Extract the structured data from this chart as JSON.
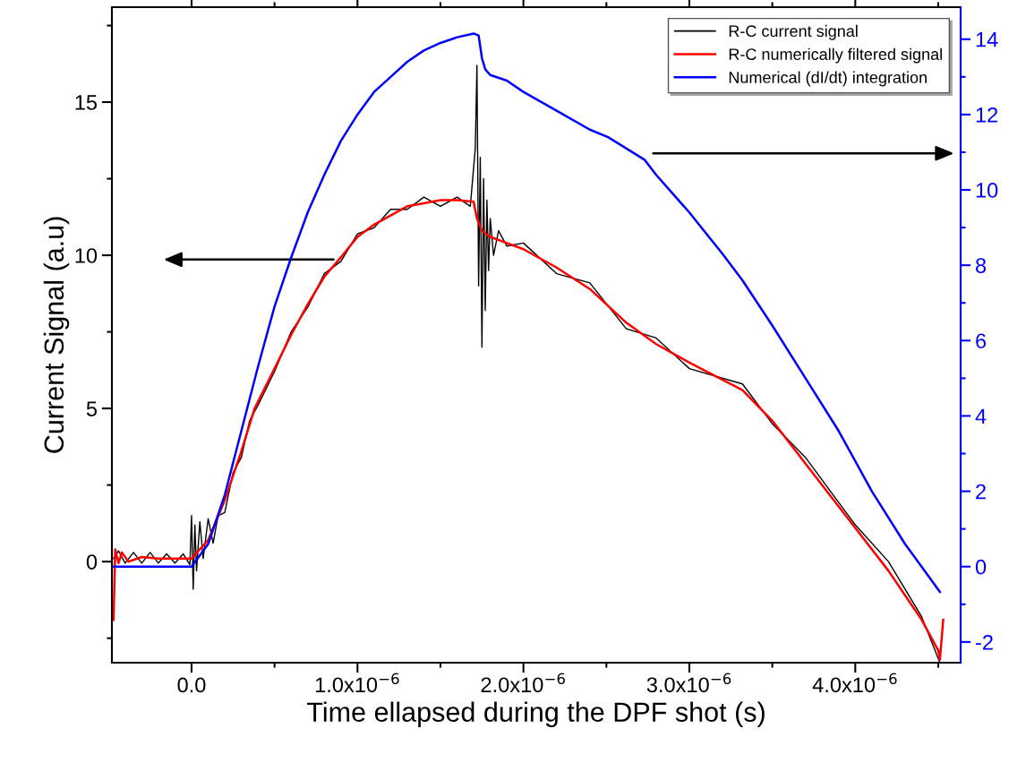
{
  "chart_data": {
    "type": "line",
    "xlabel": "Time ellapsed during the DPF shot (s)",
    "ylabel": "Current Signal (a.u)",
    "xlim": [
      -4.8e-07,
      4.635e-06
    ],
    "xticks": [
      {
        "value": 0,
        "label": "0.0"
      },
      {
        "value": 1e-06,
        "label": "1.0x10$^{−6}$"
      },
      {
        "value": 2e-06,
        "label": "2.0x10$^{−6}$"
      },
      {
        "value": 3e-06,
        "label": "3.0x10$^{−6}$"
      },
      {
        "value": 4e-06,
        "label": "4.0x10$^{−6}$"
      }
    ],
    "ylim": [
      -3.3,
      18.1
    ],
    "yticks": [
      0,
      5,
      10,
      15
    ],
    "y2lim": [
      -2.55,
      14.85
    ],
    "y2ticks": [
      -2,
      0,
      2,
      4,
      6,
      8,
      10,
      12,
      14
    ],
    "legend": "top right",
    "grid": false,
    "series": [
      {
        "name": "R-C current signal",
        "color": "#000000",
        "x": [
          -4.7e-07,
          -4.4e-07,
          -4e-07,
          -3.5e-07,
          -3e-07,
          -2.5e-07,
          -2e-07,
          -1.5e-07,
          -1e-07,
          -5e-08,
          -1e-08,
          0,
          1e-08,
          2e-08,
          3e-08,
          5e-08,
          7e-08,
          1e-07,
          1.3e-07,
          1.6e-07,
          2e-07,
          2.5e-07,
          3e-07,
          3.5e-07,
          4e-07,
          5e-07,
          6e-07,
          7e-07,
          8e-07,
          9e-07,
          1e-06,
          1.1e-06,
          1.2e-06,
          1.3e-06,
          1.4e-06,
          1.5e-06,
          1.6e-06,
          1.68e-06,
          1.71e-06,
          1.72e-06,
          1.73e-06,
          1.74e-06,
          1.75e-06,
          1.76e-06,
          1.77e-06,
          1.78e-06,
          1.79e-06,
          1.8e-06,
          1.82e-06,
          1.85e-06,
          1.9e-06,
          2e-06,
          2.2e-06,
          2.4e-06,
          2.62e-06,
          2.8e-06,
          3e-06,
          3.32e-06,
          3.5e-06,
          3.7e-06,
          4e-06,
          4.2e-06,
          4.4e-06,
          4.51e-06
        ],
        "values": [
          0.1,
          0.35,
          -0.05,
          0.3,
          -0.05,
          0.3,
          -0.05,
          0.25,
          -0.05,
          0.25,
          -0.1,
          1.5,
          -0.9,
          1.2,
          -0.3,
          1.3,
          0.1,
          1.4,
          0.6,
          1.5,
          1.6,
          2.9,
          3.4,
          4.6,
          5.1,
          6.2,
          7.5,
          8.3,
          9.4,
          9.8,
          10.7,
          10.9,
          11.5,
          11.5,
          11.9,
          11.6,
          11.9,
          11.6,
          13.5,
          16.2,
          9.0,
          13.2,
          7.0,
          12.5,
          8.2,
          11.8,
          9.5,
          11.2,
          10.0,
          10.8,
          10.3,
          10.4,
          9.4,
          9.1,
          7.6,
          7.3,
          6.3,
          5.8,
          4.5,
          3.4,
          1.2,
          0.0,
          -1.8,
          -3.3
        ]
      },
      {
        "name": "R-C numerically filtered signal",
        "color": "#ff0000",
        "x": [
          -4.7e-07,
          -4.6e-07,
          -4.4e-07,
          -4.2e-07,
          -3.8e-07,
          -3e-07,
          -2e-07,
          -1e-07,
          0,
          1e-07,
          2e-07,
          3e-07,
          3.8e-07,
          5e-07,
          6e-07,
          7e-07,
          8e-07,
          9.1e-07,
          1e-06,
          1.1e-06,
          1.2e-06,
          1.3e-06,
          1.4e-06,
          1.5e-06,
          1.6e-06,
          1.7e-06,
          1.72e-06,
          1.75e-06,
          1.8e-06,
          1.9e-06,
          2e-06,
          2.2e-06,
          2.4e-06,
          2.62e-06,
          2.8e-06,
          3e-06,
          3.32e-06,
          3.5e-06,
          3.7e-06,
          4e-06,
          4.2e-06,
          4.4e-06,
          4.5e-06,
          4.51e-06,
          4.53e-06
        ],
        "values": [
          -1.9,
          0.4,
          -0.05,
          0.3,
          0.0,
          0.15,
          0.1,
          0.1,
          0.1,
          0.7,
          2.0,
          3.6,
          5.0,
          6.3,
          7.4,
          8.4,
          9.3,
          10.0,
          10.6,
          11.0,
          11.3,
          11.6,
          11.7,
          11.8,
          11.8,
          11.75,
          11.2,
          10.8,
          10.6,
          10.4,
          10.2,
          9.6,
          8.9,
          7.8,
          7.1,
          6.5,
          5.6,
          4.6,
          3.2,
          1.1,
          -0.3,
          -1.9,
          -2.9,
          -3.2,
          -1.9
        ]
      },
      {
        "name": "Numerical (dI/dt) integration",
        "color": "#0000ff",
        "axis": "y2",
        "x": [
          -4.7e-07,
          0,
          1e-07,
          2e-07,
          3e-07,
          4e-07,
          5e-07,
          6e-07,
          7e-07,
          8e-07,
          9e-07,
          1e-06,
          1.1e-06,
          1.2e-06,
          1.3e-06,
          1.4e-06,
          1.5e-06,
          1.6e-06,
          1.7e-06,
          1.73e-06,
          1.75e-06,
          1.77e-06,
          1.8e-06,
          1.9e-06,
          2e-06,
          2.2e-06,
          2.4e-06,
          2.51e-06,
          2.73e-06,
          2.8e-06,
          3e-06,
          3.2e-06,
          3.32e-06,
          3.5e-06,
          3.7e-06,
          3.9e-06,
          4.1e-06,
          4.3e-06,
          4.51e-06
        ],
        "values": [
          0,
          0,
          0.6,
          1.9,
          3.6,
          5.3,
          6.9,
          8.2,
          9.4,
          10.4,
          11.3,
          12.0,
          12.6,
          13.0,
          13.4,
          13.7,
          13.9,
          14.05,
          14.15,
          14.1,
          13.5,
          13.2,
          13.05,
          12.9,
          12.6,
          12.1,
          11.6,
          11.4,
          10.8,
          10.4,
          9.4,
          8.3,
          7.6,
          6.4,
          5.0,
          3.6,
          2.0,
          0.6,
          -0.67
        ]
      }
    ]
  }
}
